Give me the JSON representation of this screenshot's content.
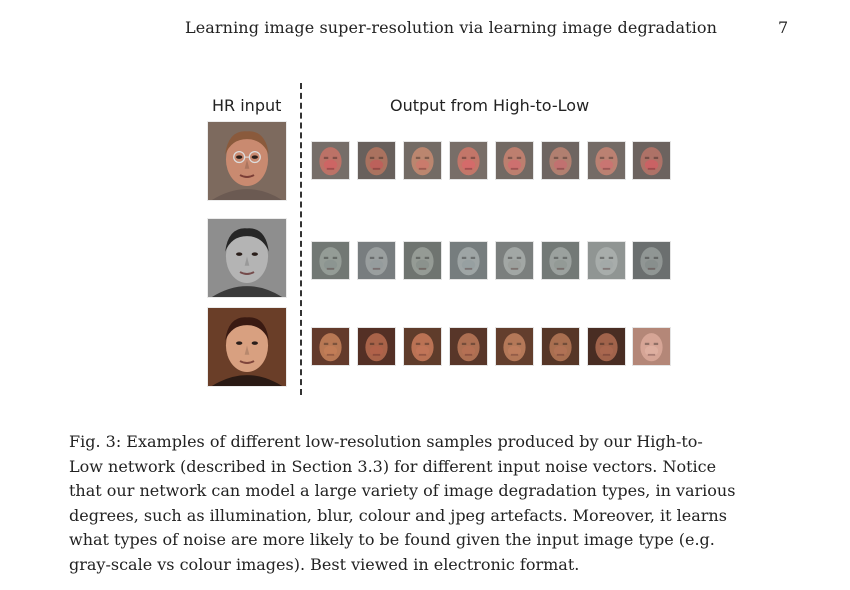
{
  "header": {
    "running_title": "Learning image super-resolution via learning image degradation",
    "page_number": "7"
  },
  "figure": {
    "hr_label": "HR input",
    "output_label": "Output from High-to-Low",
    "rows": [
      {
        "name": "older-man",
        "hr": {
          "skin": "#c98a70",
          "hair": "#8a5a3c",
          "bg": "#7d6a5e",
          "shirt": "#6b5a52",
          "glasses": true
        },
        "samples": [
          {
            "skin": "#b86a5e",
            "bg": "#6e6560",
            "tint": "#d8505a"
          },
          {
            "skin": "#a56a55",
            "bg": "#5f5752",
            "tint": "#c8484e"
          },
          {
            "skin": "#b77f66",
            "bg": "#6b625c",
            "tint": "#d56a60"
          },
          {
            "skin": "#c06e60",
            "bg": "#70655f",
            "tint": "#e05a62"
          },
          {
            "skin": "#b97767",
            "bg": "#6a605a",
            "tint": "#d85c66"
          },
          {
            "skin": "#ad7868",
            "bg": "#655c58",
            "tint": "#cc5d68"
          },
          {
            "skin": "#b77a6a",
            "bg": "#6c625d",
            "tint": "#d4626a"
          },
          {
            "skin": "#a96a5e",
            "bg": "#635a56",
            "tint": "#e04a5a"
          }
        ]
      },
      {
        "name": "young-man-grayscale",
        "hr": {
          "skin": "#b4b4b4",
          "hair": "#262626",
          "bg": "#8e8e8e",
          "shirt": "#3a3a3a",
          "glasses": false
        },
        "samples": [
          {
            "skin": "#8e9690",
            "bg": "#6a706c",
            "tint": "#7e8a86"
          },
          {
            "skin": "#94999a",
            "bg": "#707578",
            "tint": "#8a9396"
          },
          {
            "skin": "#8f958f",
            "bg": "#676c68",
            "tint": "#7c8580"
          },
          {
            "skin": "#98a0a0",
            "bg": "#6e7576",
            "tint": "#8c9899"
          },
          {
            "skin": "#9da2a0",
            "bg": "#737876",
            "tint": "#8f9590"
          },
          {
            "skin": "#959c98",
            "bg": "#6b716e",
            "tint": "#868e8a"
          },
          {
            "skin": "#a3a8a6",
            "bg": "#8a8f8d",
            "tint": "#9aa0a0"
          },
          {
            "skin": "#8a908e",
            "bg": "#626766",
            "tint": "#7a8280"
          }
        ]
      },
      {
        "name": "young-woman",
        "hr": {
          "skin": "#d8a080",
          "hair": "#3a1a12",
          "bg": "#6a3e28",
          "shirt": "#2a1a14",
          "glasses": false
        },
        "samples": [
          {
            "skin": "#b4704a",
            "bg": "#5a2e1e",
            "tint": "#c87a50"
          },
          {
            "skin": "#a45a3e",
            "bg": "#4a2418",
            "tint": "#b45a40"
          },
          {
            "skin": "#b66a4a",
            "bg": "#55301e",
            "tint": "#c47052"
          },
          {
            "skin": "#a86648",
            "bg": "#4e2a1c",
            "tint": "#b86a4c"
          },
          {
            "skin": "#b0704e",
            "bg": "#5a3220",
            "tint": "#c27a58"
          },
          {
            "skin": "#a46646",
            "bg": "#4c2a1a",
            "tint": "#b46e50"
          },
          {
            "skin": "#9c5a40",
            "bg": "#3e2016",
            "tint": "#ac6248"
          },
          {
            "skin": "#d4a090",
            "bg": "#b08070",
            "tint": "#e2b2a4"
          }
        ]
      }
    ]
  },
  "caption": {
    "lines": [
      "Fig. 3: Examples of different low-resolution samples produced by our High-to-",
      "Low network (described in Section 3.3) for different input noise vectors. Notice",
      "that our network can model a large variety of image degradation types, in various",
      "degrees, such as illumination, blur, colour and jpeg artefacts. Moreover, it learns",
      "what types of noise are more likely to be found given the input image type (e.g.",
      "gray-scale vs colour images). Best viewed in electronic format."
    ]
  }
}
